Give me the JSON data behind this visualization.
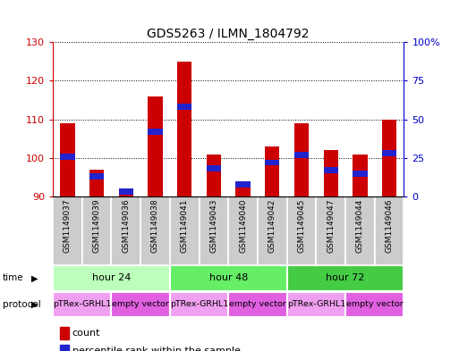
{
  "title": "GDS5263 / ILMN_1804792",
  "samples": [
    "GSM1149037",
    "GSM1149039",
    "GSM1149036",
    "GSM1149038",
    "GSM1149041",
    "GSM1149043",
    "GSM1149040",
    "GSM1149042",
    "GSM1149045",
    "GSM1149047",
    "GSM1149044",
    "GSM1149046"
  ],
  "count_values": [
    109,
    97,
    92,
    116,
    125,
    101,
    94,
    103,
    109,
    102,
    101,
    110
  ],
  "percentile_values": [
    26,
    13,
    3,
    42,
    58,
    18,
    8,
    22,
    27,
    17,
    15,
    28
  ],
  "ylim_left": [
    90,
    130
  ],
  "ylim_right": [
    0,
    100
  ],
  "yticks_left": [
    90,
    100,
    110,
    120,
    130
  ],
  "yticks_right": [
    0,
    25,
    50,
    75,
    100
  ],
  "ytick_labels_right": [
    "0",
    "25",
    "50",
    "75",
    "100%"
  ],
  "count_color": "#cc0000",
  "percentile_color": "#2222cc",
  "time_groups": [
    {
      "label": "hour 24",
      "start": 0,
      "end": 4,
      "color": "#bbffbb"
    },
    {
      "label": "hour 48",
      "start": 4,
      "end": 8,
      "color": "#66ee66"
    },
    {
      "label": "hour 72",
      "start": 8,
      "end": 12,
      "color": "#44cc44"
    }
  ],
  "protocol_groups": [
    {
      "label": "pTRex-GRHL1",
      "start": 0,
      "end": 2,
      "color": "#f0a0f0"
    },
    {
      "label": "empty vector",
      "start": 2,
      "end": 4,
      "color": "#e060e0"
    },
    {
      "label": "pTRex-GRHL1",
      "start": 4,
      "end": 6,
      "color": "#f0a0f0"
    },
    {
      "label": "empty vector",
      "start": 6,
      "end": 8,
      "color": "#e060e0"
    },
    {
      "label": "pTRex-GRHL1",
      "start": 8,
      "end": 10,
      "color": "#f0a0f0"
    },
    {
      "label": "empty vector",
      "start": 10,
      "end": 12,
      "color": "#e060e0"
    }
  ],
  "left_tick_color": "#cc0000",
  "right_tick_color": "#0000cc",
  "sample_box_color": "#cccccc",
  "bg_color": "#ffffff"
}
